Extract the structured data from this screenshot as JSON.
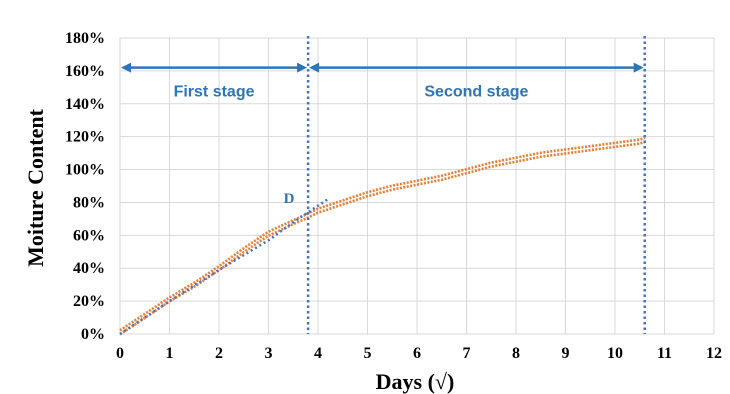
{
  "chart_data": {
    "type": "line",
    "xlabel": "Days (√)",
    "ylabel": "Moiture Content",
    "xlim": [
      0,
      12
    ],
    "ylim": [
      0,
      180
    ],
    "x_ticks": [
      "0",
      "1",
      "2",
      "3",
      "4",
      "5",
      "6",
      "7",
      "8",
      "9",
      "10",
      "11",
      "12"
    ],
    "y_ticks": [
      "0%",
      "20%",
      "40%",
      "60%",
      "80%",
      "100%",
      "120%",
      "140%",
      "160%",
      "180%"
    ],
    "grid": true,
    "series": [
      {
        "style": "orange double-line band",
        "x": [
          0,
          0.5,
          1,
          1.5,
          2,
          2.5,
          3,
          3.5,
          3.8,
          4,
          4.5,
          5,
          5.5,
          6,
          6.5,
          7,
          7.5,
          8,
          8.5,
          9,
          9.5,
          10,
          10.5,
          10.6
        ],
        "values": [
          1,
          11,
          21,
          30,
          40,
          51,
          61,
          68,
          72,
          75,
          80,
          85,
          89,
          92,
          95,
          99,
          103,
          106,
          109,
          111,
          113,
          115,
          117,
          118
        ]
      },
      {
        "style": "blue dotted trend",
        "x": [
          0,
          1,
          2,
          3,
          3.6,
          4.2
        ],
        "values": [
          0,
          20,
          39,
          57,
          70,
          82
        ]
      }
    ],
    "annotations": {
      "point_label": "D",
      "point_x": 3.8,
      "point_y": 73,
      "stage_boundaries": [
        3.8,
        10.6
      ],
      "stage_arrow_y": 162,
      "stages": [
        {
          "label": "First stage",
          "from": 0,
          "to": 3.8
        },
        {
          "label": "Second stage",
          "from": 3.8,
          "to": 10.6
        }
      ]
    },
    "colors": {
      "series": "#ED7D31",
      "trend": "#4472C4",
      "annotation": "#2E75B6",
      "grid": "#D9D9D9"
    }
  }
}
